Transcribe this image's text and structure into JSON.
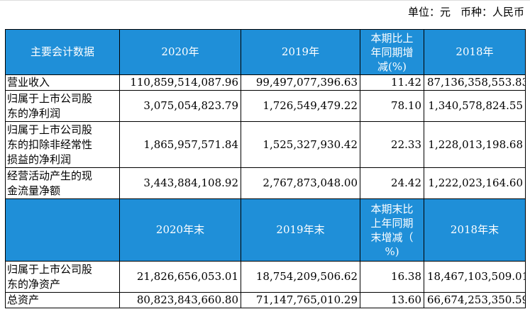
{
  "unit": {
    "unit_label": "单位：元",
    "currency_label": "币种：人民币"
  },
  "header1": {
    "col0": "主要会计数据",
    "col1": "2020年",
    "col2": "2019年",
    "col3_lines": [
      "本期比上",
      "年同期增",
      "减(%)"
    ],
    "col4": "2018年"
  },
  "rows1": [
    {
      "label_lines": [
        "营业收入"
      ],
      "v2020": "110,859,514,087.96",
      "v2019": "99,497,077,396.63",
      "change": "11.42",
      "v2018": "87,136,358,553.83"
    },
    {
      "label_lines": [
        "归属于上市公司股",
        "东的净利润"
      ],
      "v2020": "3,075,054,823.79",
      "v2019": "1,726,549,479.22",
      "change": "78.10",
      "v2018": "1,340,578,824.55"
    },
    {
      "label_lines": [
        "归属于上市公司股",
        "东的扣除非经常性",
        "损益的净利润"
      ],
      "v2020": "1,865,957,571.84",
      "v2019": "1,525,327,930.42",
      "change": "22.33",
      "v2018": "1,228,013,198.68"
    },
    {
      "label_lines": [
        "经营活动产生的现",
        "金流量净额"
      ],
      "v2020": "3,443,884,108.92",
      "v2019": "2,767,873,048.00",
      "change": "24.42",
      "v2018": "1,222,023,164.60"
    }
  ],
  "header2": {
    "col0": "",
    "col1": "2020年末",
    "col2": "2019年末",
    "col3_lines": [
      "本期末比",
      "上年同期",
      "末增减（",
      "%)"
    ],
    "col4": "2018年末"
  },
  "rows2": [
    {
      "label_lines": [
        "归属于上市公司股",
        "东的净资产"
      ],
      "v2020": "21,826,656,053.01",
      "v2019": "18,754,209,506.62",
      "change": "16.38",
      "v2018": "18,467,103,509.01"
    },
    {
      "label_lines": [
        "总资产"
      ],
      "v2020": "80,823,843,660.80",
      "v2019": "71,147,765,010.29",
      "change": "13.60",
      "v2018": "66,674,253,350.59"
    }
  ]
}
